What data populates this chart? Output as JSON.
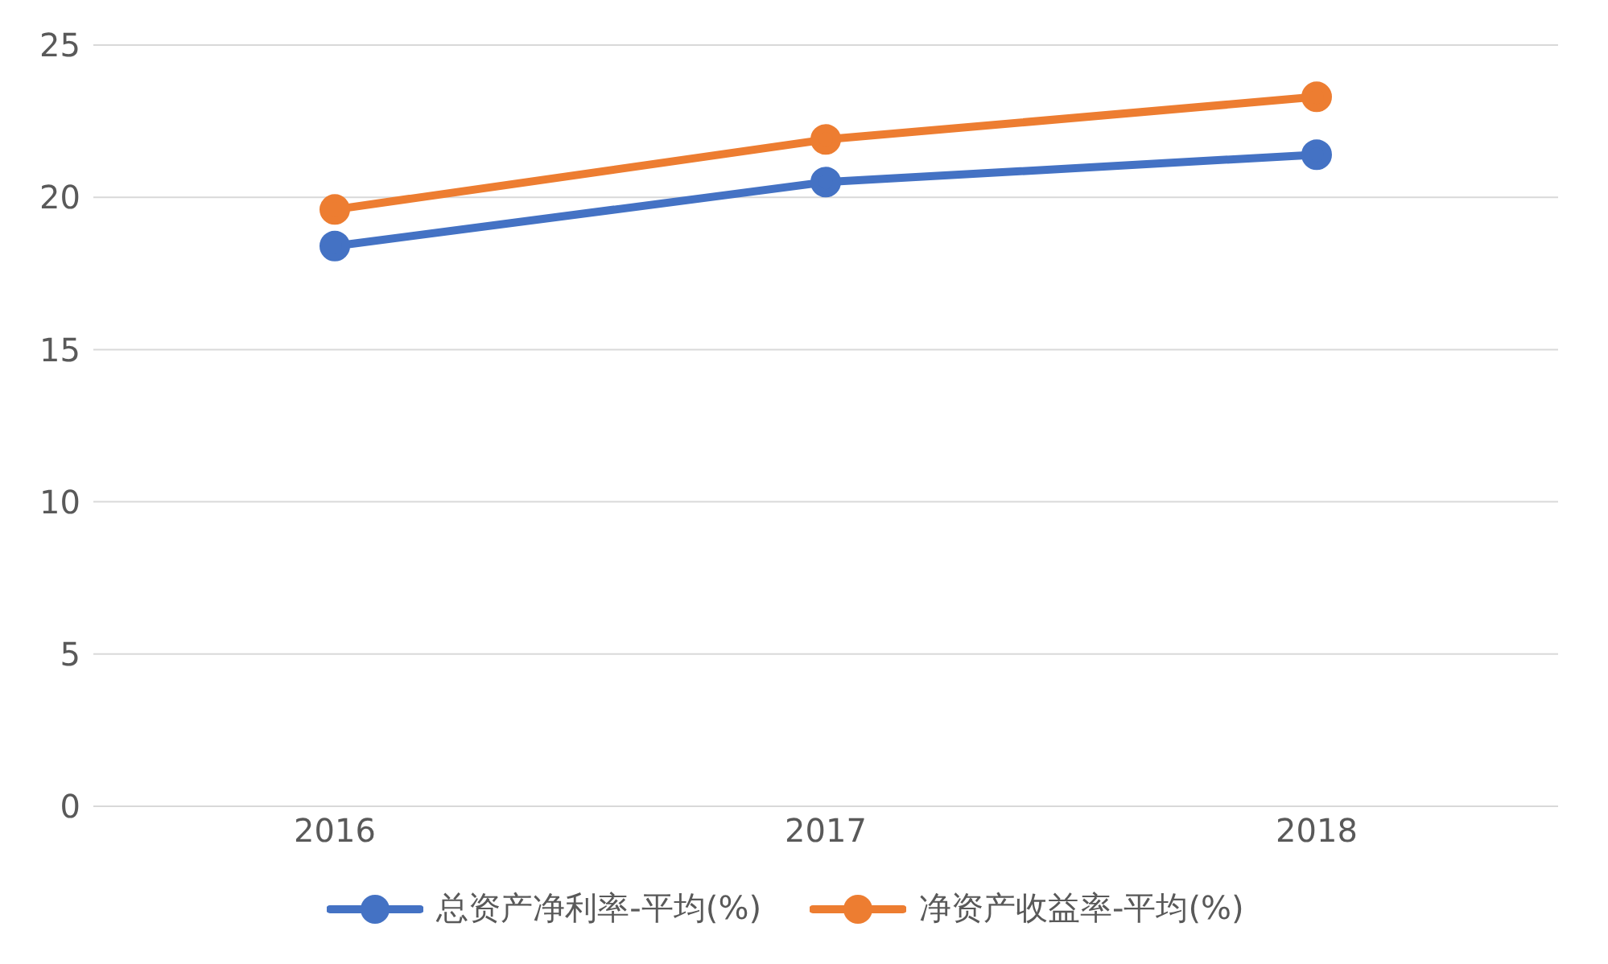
{
  "chart_data": {
    "type": "line",
    "categories": [
      "2016",
      "2017",
      "2018"
    ],
    "series": [
      {
        "name": "总资产净利率-平均(%)",
        "color": "#4472c4",
        "values": [
          18.4,
          20.5,
          21.4
        ]
      },
      {
        "name": "净资产收益率-平均(%)",
        "color": "#ed7d31",
        "values": [
          19.6,
          21.9,
          23.3
        ]
      }
    ],
    "ylim": [
      0,
      25
    ],
    "yticks": [
      0,
      5,
      10,
      15,
      20,
      25
    ],
    "grid": "y",
    "legend": "bottom",
    "marker": "circle",
    "line_style": "solid"
  }
}
